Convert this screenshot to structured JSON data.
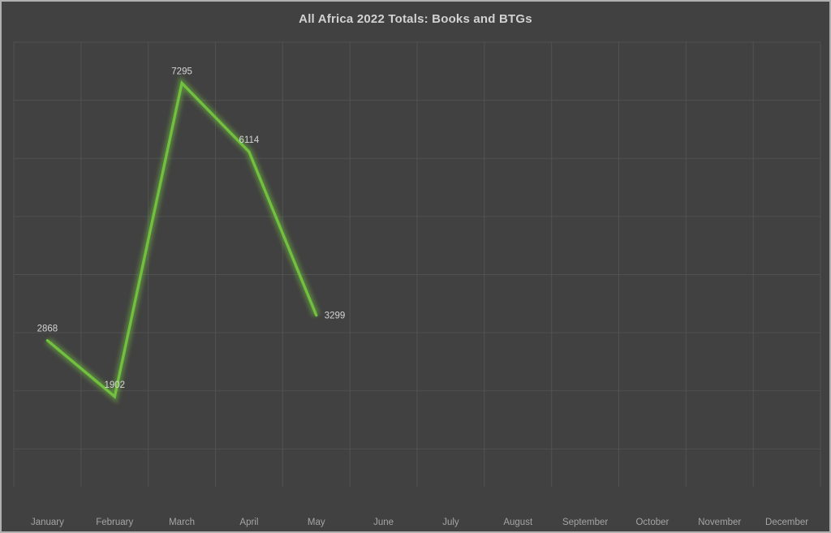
{
  "window": {
    "background_color": "#414141",
    "border_color": "#b2b0ae"
  },
  "chart_data": {
    "type": "line",
    "title": "All Africa 2022 Totals: Books and BTGs",
    "categories": [
      "January",
      "February",
      "March",
      "April",
      "May",
      "June",
      "July",
      "August",
      "September",
      "October",
      "November",
      "December"
    ],
    "series": [
      {
        "values": [
          2868,
          1902,
          7295,
          6114,
          3299,
          null,
          null,
          null,
          null,
          null,
          null,
          null
        ],
        "data_labels": [
          "2868",
          "1902",
          "7295",
          "6114",
          "3299"
        ],
        "label_positions": [
          "above",
          "above",
          "above",
          "above",
          "right"
        ],
        "line_color": "#72c13e",
        "glow_color": "rgba(114,193,62,0.5)"
      }
    ],
    "xlabel": "",
    "ylabel": "",
    "ylim": [
      0,
      8000
    ],
    "y_major_unit": 1000,
    "y_tick_labels_visible": false,
    "grid": true,
    "gridline_color": "#515151",
    "legend": "none",
    "title_color": "#d2d2d2",
    "axis_label_color": "#a5a5a5",
    "data_label_color": "#d4d4d4"
  }
}
